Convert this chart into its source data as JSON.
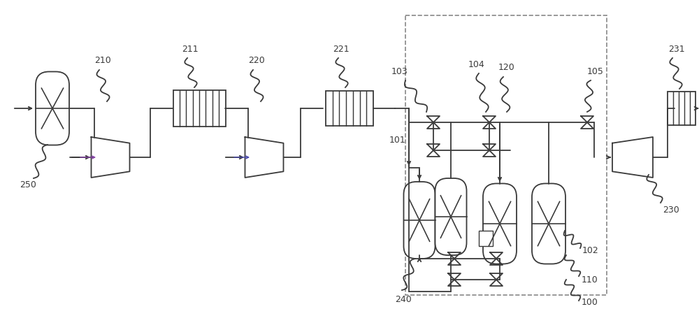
{
  "bg": "#ffffff",
  "lc": "#3a3a3a",
  "lw": 1.3,
  "fig_w": 10.0,
  "fig_h": 4.42
}
